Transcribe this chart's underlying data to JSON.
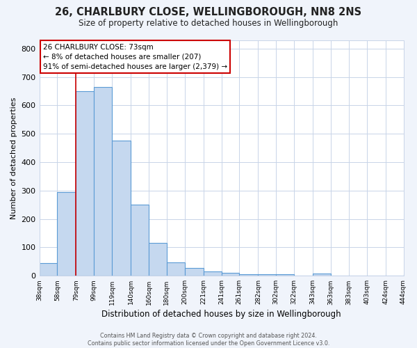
{
  "title": "26, CHARLBURY CLOSE, WELLINGBOROUGH, NN8 2NS",
  "subtitle": "Size of property relative to detached houses in Wellingborough",
  "xlabel": "Distribution of detached houses by size in Wellingborough",
  "ylabel": "Number of detached properties",
  "bin_labels": [
    "38sqm",
    "58sqm",
    "79sqm",
    "99sqm",
    "119sqm",
    "140sqm",
    "160sqm",
    "180sqm",
    "200sqm",
    "221sqm",
    "241sqm",
    "261sqm",
    "282sqm",
    "302sqm",
    "322sqm",
    "343sqm",
    "363sqm",
    "383sqm",
    "403sqm",
    "424sqm",
    "444sqm"
  ],
  "bar_heights": [
    45,
    295,
    650,
    665,
    475,
    250,
    115,
    48,
    28,
    15,
    10,
    5,
    5,
    5,
    0,
    8,
    0,
    0,
    0,
    0,
    5
  ],
  "bar_color": "#c5d8ef",
  "bar_edge_color": "#5b9bd5",
  "bin_edges": [
    38,
    58,
    79,
    99,
    119,
    140,
    160,
    180,
    200,
    221,
    241,
    261,
    282,
    302,
    322,
    343,
    363,
    383,
    403,
    424,
    444
  ],
  "vline_x": 79,
  "vline_color": "#cc0000",
  "annotation_line1": "26 CHARLBURY CLOSE: 73sqm",
  "annotation_line2": "← 8% of detached houses are smaller (207)",
  "annotation_line3": "91% of semi-detached houses are larger (2,379) →",
  "annotation_box_color": "#ffffff",
  "annotation_box_edge": "#cc0000",
  "ylim": [
    0,
    830
  ],
  "yticks": [
    0,
    100,
    200,
    300,
    400,
    500,
    600,
    700,
    800
  ],
  "footer_line1": "Contains HM Land Registry data © Crown copyright and database right 2024.",
  "footer_line2": "Contains public sector information licensed under the Open Government Licence v3.0.",
  "bg_color": "#f0f4fb",
  "plot_bg_color": "#ffffff",
  "grid_color": "#c8d4e8"
}
